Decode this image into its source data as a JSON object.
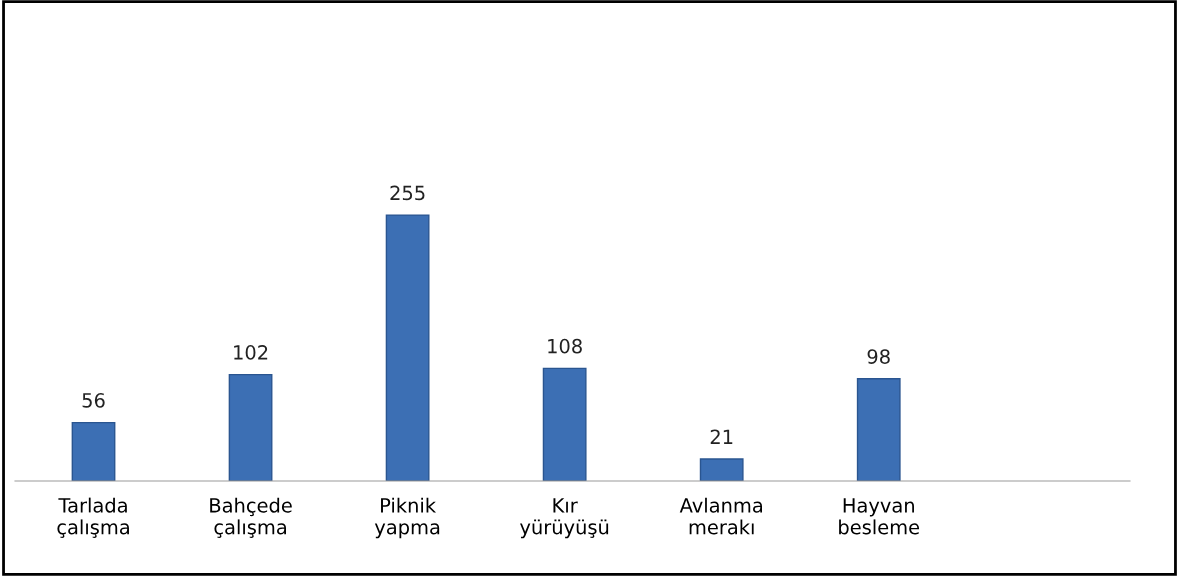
{
  "chart_data": {
    "type": "bar",
    "categories": [
      "Tarlada\nçalışma",
      "Bahçede\nçalışma",
      "Piknik\nyapma",
      "Kır\nyürüyüşü",
      "Avlanma\nmerakı",
      "Hayvan\nbesleme"
    ],
    "values": [
      56,
      102,
      255,
      108,
      21,
      98
    ],
    "color": "#3c6fb4",
    "data_labels": true,
    "grid": false,
    "legend": false
  }
}
